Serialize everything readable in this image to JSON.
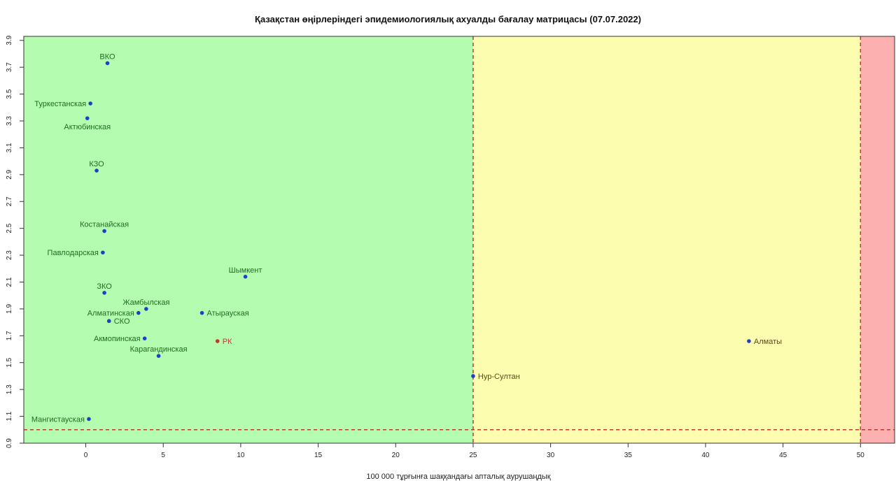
{
  "chart_data": {
    "type": "scatter",
    "title": "Қазақстан өңірлеріндегі эпидемиологиялық ахуалды бағалау матрицасы  (07.07.2022)",
    "xlabel": "100 000 тұрғынға шаққандағы апталық аурушаңдық",
    "ylabel": "",
    "xlim": [
      -4,
      52.2
    ],
    "ylim": [
      0.9,
      3.93
    ],
    "x_ticks": [
      0,
      5,
      10,
      15,
      20,
      25,
      30,
      35,
      40,
      45,
      50
    ],
    "y_ticks": [
      0.9,
      1.1,
      1.3,
      1.5,
      1.7,
      1.9,
      2.1,
      2.3,
      2.5,
      2.7,
      2.9,
      3.1,
      3.3,
      3.5,
      3.7,
      3.9
    ],
    "grid": false,
    "zones": [
      {
        "name": "green",
        "x_from": -4,
        "x_to": 25,
        "color": "#b3fcb0"
      },
      {
        "name": "yellow",
        "x_from": 25,
        "x_to": 50,
        "color": "#fdfdb0"
      },
      {
        "name": "red",
        "x_from": 50,
        "x_to": 52.2,
        "color": "#fcb0b0"
      }
    ],
    "threshold_lines": {
      "x": [
        25,
        50
      ],
      "y": [
        1.0
      ],
      "color": "#c0392b",
      "style": "dashed"
    },
    "points": [
      {
        "label": "ВКО",
        "x": 1.4,
        "y": 3.73,
        "color": "#1f3fc4",
        "label_color": "#1f6e1f",
        "label_pos": "top"
      },
      {
        "label": "Туркестанская",
        "x": 0.3,
        "y": 3.43,
        "color": "#1f3fc4",
        "label_color": "#1f6e1f",
        "label_pos": "left"
      },
      {
        "label": "Актюбинская",
        "x": 0.1,
        "y": 3.32,
        "color": "#1f3fc4",
        "label_color": "#1f6e1f",
        "label_pos": "bottom"
      },
      {
        "label": "КЗО",
        "x": 0.7,
        "y": 2.93,
        "color": "#1f3fc4",
        "label_color": "#1f6e1f",
        "label_pos": "top"
      },
      {
        "label": "Костанайская",
        "x": 1.2,
        "y": 2.48,
        "color": "#1f3fc4",
        "label_color": "#1f6e1f",
        "label_pos": "top"
      },
      {
        "label": "Павлодарская",
        "x": 1.1,
        "y": 2.32,
        "color": "#1f3fc4",
        "label_color": "#1f6e1f",
        "label_pos": "left"
      },
      {
        "label": "Шымкент",
        "x": 10.3,
        "y": 2.14,
        "color": "#1f3fc4",
        "label_color": "#1f6e1f",
        "label_pos": "top"
      },
      {
        "label": "ЗКО",
        "x": 1.2,
        "y": 2.02,
        "color": "#1f3fc4",
        "label_color": "#1f6e1f",
        "label_pos": "top"
      },
      {
        "label": "Жамбылская",
        "x": 3.9,
        "y": 1.9,
        "color": "#1f3fc4",
        "label_color": "#1f6e1f",
        "label_pos": "top"
      },
      {
        "label": "Атырауская",
        "x": 7.5,
        "y": 1.87,
        "color": "#1f3fc4",
        "label_color": "#1f6e1f",
        "label_pos": "right"
      },
      {
        "label": "Алматинская",
        "x": 3.4,
        "y": 1.87,
        "color": "#1f3fc4",
        "label_color": "#1f6e1f",
        "label_pos": "left"
      },
      {
        "label": "СКО",
        "x": 1.5,
        "y": 1.81,
        "color": "#1f3fc4",
        "label_color": "#1f6e1f",
        "label_pos": "right"
      },
      {
        "label": "Акмопинская",
        "x": 3.8,
        "y": 1.68,
        "color": "#1f3fc4",
        "label_color": "#1f6e1f",
        "label_pos": "left"
      },
      {
        "label": "РК",
        "x": 8.5,
        "y": 1.66,
        "color": "#c0392b",
        "label_color": "#c0392b",
        "label_pos": "right"
      },
      {
        "label": "Карагандинская",
        "x": 4.7,
        "y": 1.55,
        "color": "#1f3fc4",
        "label_color": "#1f6e1f",
        "label_pos": "top"
      },
      {
        "label": "Алматы",
        "x": 42.8,
        "y": 1.66,
        "color": "#1f3fc4",
        "label_color": "#5a4a1a",
        "label_pos": "right"
      },
      {
        "label": "Нур-Султан",
        "x": 25.0,
        "y": 1.4,
        "color": "#1f3fc4",
        "label_color": "#5a4a1a",
        "label_pos": "right"
      },
      {
        "label": "Мангистауская",
        "x": 0.2,
        "y": 1.08,
        "color": "#1f3fc4",
        "label_color": "#1f6e1f",
        "label_pos": "left"
      }
    ]
  }
}
